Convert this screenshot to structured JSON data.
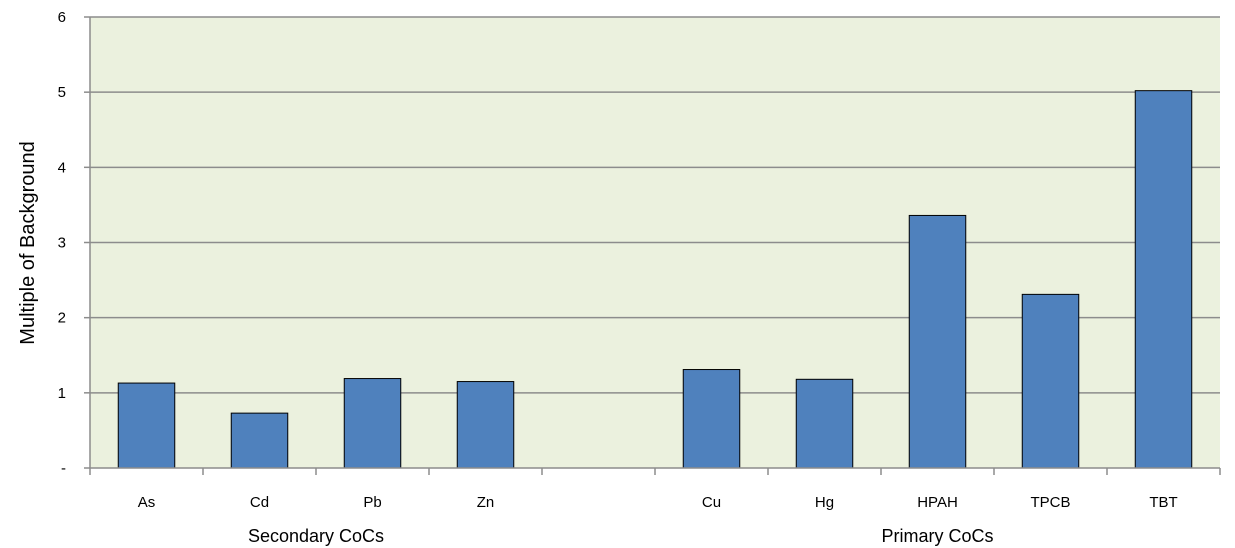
{
  "chart_data": {
    "type": "bar",
    "title": "",
    "xlabel": "",
    "ylabel": "Multiple of Background",
    "ylim": [
      0,
      6
    ],
    "y_ticks": [
      {
        "value": 0,
        "label": "-"
      },
      {
        "value": 1,
        "label": "1"
      },
      {
        "value": 2,
        "label": "2"
      },
      {
        "value": 3,
        "label": "3"
      },
      {
        "value": 4,
        "label": "4"
      },
      {
        "value": 5,
        "label": "5"
      },
      {
        "value": 6,
        "label": "6"
      }
    ],
    "grid": true,
    "legend": "none",
    "categories": [
      "As",
      "Cd",
      "Pb",
      "Zn",
      "",
      "Cu",
      "Hg",
      "HPAH",
      "TPCB",
      "TBT"
    ],
    "series": [
      {
        "values": [
          1.13,
          0.73,
          1.19,
          1.15,
          null,
          1.31,
          1.18,
          3.36,
          2.31,
          5.02
        ]
      }
    ],
    "groups": [
      {
        "label": "Secondary CoCs",
        "categories": [
          "As",
          "Cd",
          "Pb",
          "Zn"
        ]
      },
      {
        "label": "Primary CoCs",
        "categories": [
          "Cu",
          "Hg",
          "HPAH",
          "TPCB",
          "TBT"
        ]
      }
    ],
    "colors": {
      "bar": "#4f81bd",
      "bar_edge": "#000000",
      "plot_background": "#ebf1de",
      "gridline": "#8c8c8c",
      "axis": "#8c8c8c"
    }
  }
}
